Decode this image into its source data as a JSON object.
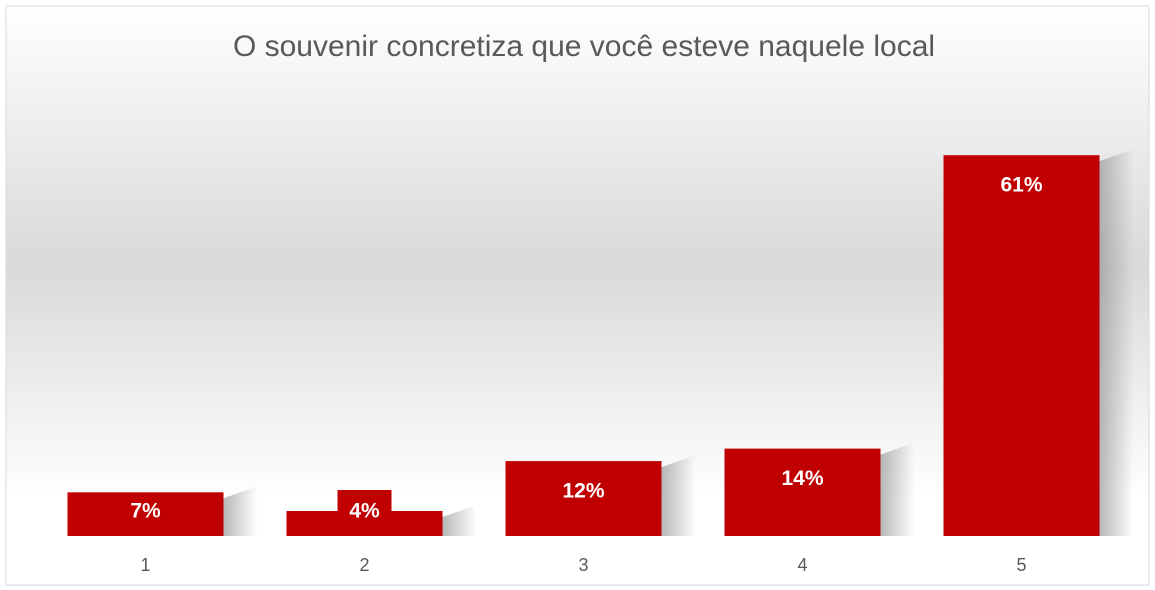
{
  "chart_data": {
    "type": "bar",
    "title": "O souvenir concretiza que você esteve naquele local",
    "categories": [
      "1",
      "2",
      "3",
      "4",
      "5"
    ],
    "values": [
      7,
      4,
      12,
      14,
      61
    ],
    "value_labels": [
      "7%",
      "4%",
      "12%",
      "14%",
      "61%"
    ],
    "color": "#c00000",
    "ylim": [
      0,
      70
    ]
  }
}
